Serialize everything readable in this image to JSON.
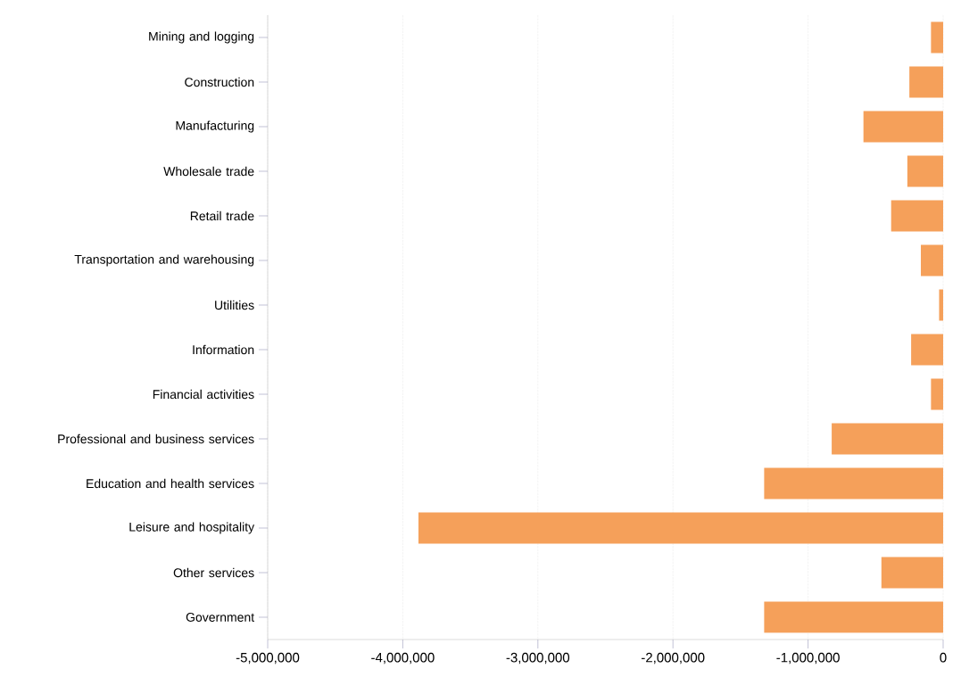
{
  "chart_data": {
    "type": "bar",
    "orientation": "horizontal",
    "categories": [
      "Mining and logging",
      "Construction",
      "Manufacturing",
      "Wholesale trade",
      "Retail trade",
      "Transportation and warehousing",
      "Utilities",
      "Information",
      "Financial activities",
      "Professional and business services",
      "Education and health services",
      "Leisure and hospitality",
      "Other services",
      "Government"
    ],
    "values": [
      -90000,
      -250000,
      -590000,
      -265000,
      -385000,
      -165000,
      -30000,
      -237000,
      -90000,
      -825000,
      -1325000,
      -3885000,
      -457000,
      -1325000
    ],
    "color": "#f5a05a",
    "xlim": [
      -5000000,
      0
    ],
    "xticks": [
      {
        "value": -5000000,
        "label": "-5,000,000"
      },
      {
        "value": -4000000,
        "label": "-4,000,000"
      },
      {
        "value": -3000000,
        "label": "-3,000,000"
      },
      {
        "value": -2000000,
        "label": "-2,000,000"
      },
      {
        "value": -1000000,
        "label": "-1,000,000"
      },
      0
    ],
    "grid": "x"
  }
}
